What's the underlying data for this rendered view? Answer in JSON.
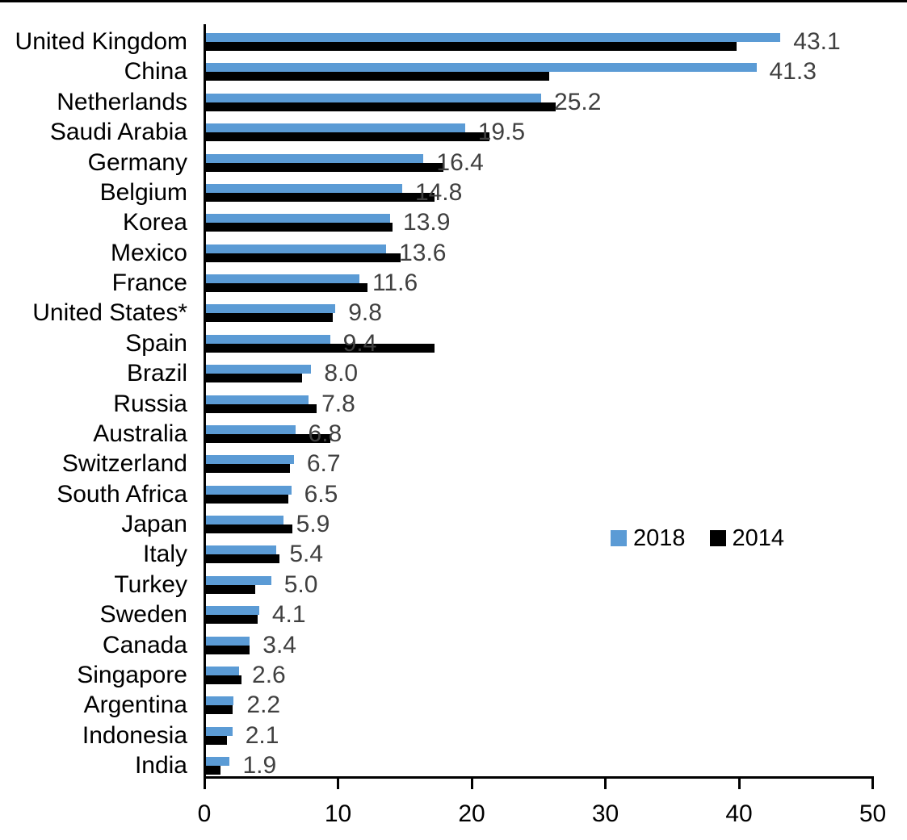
{
  "chart_data": {
    "type": "bar",
    "orientation": "horizontal",
    "title": "",
    "xlabel": "",
    "ylabel": "",
    "categories": [
      "United Kingdom",
      "China",
      "Netherlands",
      "Saudi Arabia",
      "Germany",
      "Belgium",
      "Korea",
      "Mexico",
      "France",
      "United States*",
      "Spain",
      "Brazil",
      "Russia",
      "Australia",
      "Switzerland",
      "South Africa",
      "Japan",
      "Italy",
      "Turkey",
      "Sweden",
      "Canada",
      "Singapore",
      "Argentina",
      "Indonesia",
      "India"
    ],
    "series": [
      {
        "name": "2018",
        "color": "#5B9BD5",
        "values": [
          43.1,
          41.3,
          25.2,
          19.5,
          16.4,
          14.8,
          13.9,
          13.6,
          11.6,
          9.8,
          9.4,
          8.0,
          7.8,
          6.8,
          6.7,
          6.5,
          5.9,
          5.4,
          5.0,
          4.1,
          3.4,
          2.6,
          2.2,
          2.1,
          1.9
        ]
      },
      {
        "name": "2014",
        "color": "#000000",
        "values": [
          39.8,
          25.8,
          26.3,
          21.3,
          17.9,
          17.2,
          14.1,
          14.7,
          12.2,
          9.6,
          17.2,
          7.3,
          8.4,
          9.4,
          6.4,
          6.3,
          6.6,
          5.6,
          3.8,
          4.0,
          3.4,
          2.8,
          2.1,
          1.7,
          1.2
        ]
      }
    ],
    "value_labels": [
      "43.1",
      "41.3",
      "25.2",
      "19.5",
      "16.4",
      "14.8",
      "13.9",
      "13.6",
      "11.6",
      "9.8",
      "9.4",
      "8.0",
      "7.8",
      "6.8",
      "6.7",
      "6.5",
      "5.9",
      "5.4",
      "5.0",
      "4.1",
      "3.4",
      "2.6",
      "2.2",
      "2.1",
      "1.9"
    ],
    "value_labels_series": "2018",
    "value_label_color": "#404040",
    "xlim": [
      0,
      50
    ],
    "xticks": [
      0,
      10,
      20,
      30,
      40,
      50
    ],
    "grid": false,
    "legend": {
      "position": "middle-right",
      "entries": [
        "2018",
        "2014"
      ]
    },
    "axis_color": "#000000"
  }
}
